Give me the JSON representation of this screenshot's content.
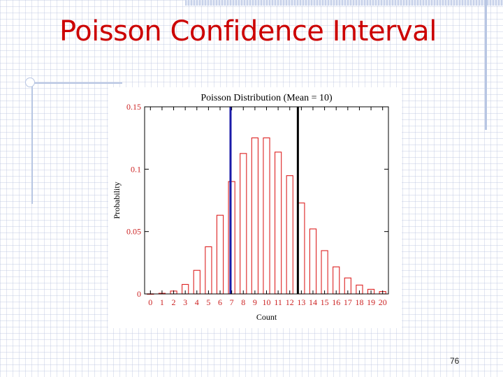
{
  "slide": {
    "title": "Poisson Confidence Interval",
    "page_number": "76"
  },
  "colors": {
    "title": "#cc0000",
    "bars": "#dd2222",
    "lower_bound_line": "#1a1aa8",
    "upper_bound_line": "#000000",
    "tick_labels": "#cc2222"
  },
  "chart_data": {
    "type": "bar",
    "title": "Poisson Distribution (Mean = 10)",
    "xlabel": "Count",
    "ylabel": "Probability",
    "categories": [
      "0",
      "1",
      "2",
      "3",
      "4",
      "5",
      "6",
      "7",
      "8",
      "9",
      "10",
      "11",
      "12",
      "13",
      "14",
      "15",
      "16",
      "17",
      "18",
      "19",
      "20"
    ],
    "values": [
      5e-05,
      0.0005,
      0.0023,
      0.0076,
      0.0189,
      0.0378,
      0.0631,
      0.0901,
      0.1126,
      0.1251,
      0.1251,
      0.1137,
      0.0948,
      0.0729,
      0.0521,
      0.0347,
      0.0217,
      0.0128,
      0.0071,
      0.0037,
      0.0019
    ],
    "ylim": [
      0,
      0.15
    ],
    "yticks": [
      0,
      0.05,
      0.1,
      0.15
    ],
    "ytick_labels": [
      "0",
      "0.05",
      "0.1",
      "0.15"
    ],
    "vertical_lines": [
      {
        "x": 6.9,
        "color": "#1a1aa8"
      },
      {
        "x": 12.7,
        "color": "#000000"
      }
    ],
    "grid": false
  }
}
